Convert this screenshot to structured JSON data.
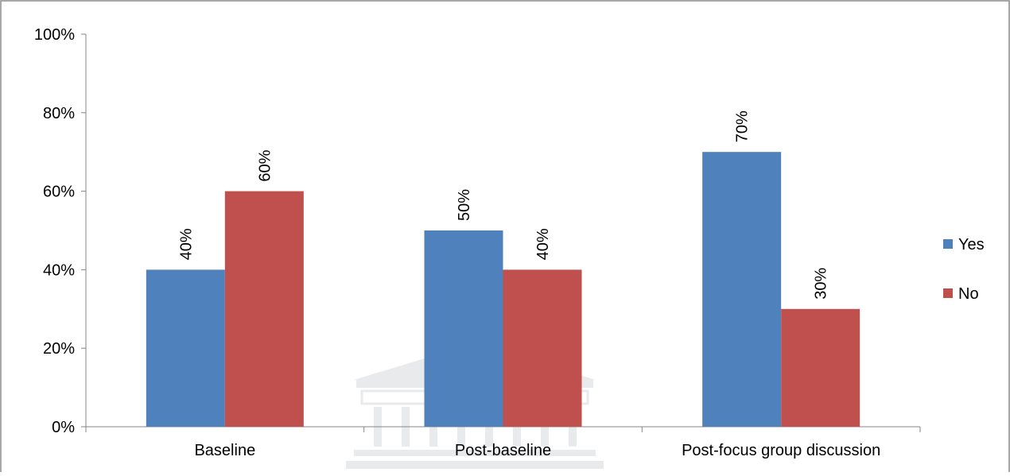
{
  "chart_data": {
    "type": "bar",
    "categories": [
      "Baseline",
      "Post-baseline",
      "Post-focus group discussion"
    ],
    "series": [
      {
        "name": "Yes",
        "values": [
          40,
          50,
          70
        ],
        "labels": [
          "40%",
          "50%",
          "70%"
        ],
        "color": "#4F81BD"
      },
      {
        "name": "No",
        "values": [
          60,
          40,
          30
        ],
        "labels": [
          "60%",
          "40%",
          "30%"
        ],
        "color": "#C0504D"
      }
    ],
    "ylim": [
      0,
      100
    ],
    "yticks": [
      0,
      20,
      40,
      60,
      80,
      100
    ],
    "ytick_labels": [
      "0%",
      "20%",
      "40%",
      "60%",
      "80%",
      "100%"
    ],
    "grid": false,
    "legend_position": "right",
    "data_labels_rotated": true
  }
}
